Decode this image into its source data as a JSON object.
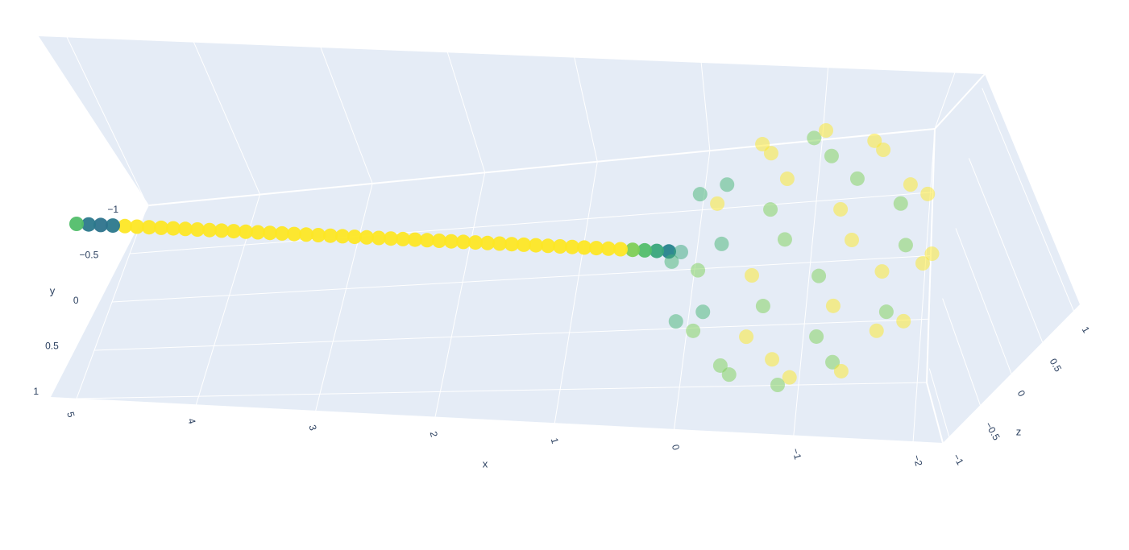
{
  "chart_data": {
    "type": "scatter3d",
    "x_title": "x",
    "y_title": "y",
    "z_title": "z",
    "xlim": [
      -2.2,
      5.3
    ],
    "ylim": [
      -1.1,
      1.1
    ],
    "zlim": [
      -1.1,
      1.1
    ],
    "xticks": [
      5,
      4,
      3,
      2,
      1,
      0,
      {
        "value": -1,
        "label": "−1"
      },
      {
        "value": -2,
        "label": "−2"
      }
    ],
    "yticks": [
      {
        "value": -1,
        "label": "−1"
      },
      {
        "value": -0.5,
        "label": "−0.5"
      },
      0,
      0.5,
      1
    ],
    "zticks": [
      {
        "value": -1,
        "label": "−1"
      },
      {
        "value": -0.5,
        "label": "−0.5"
      },
      0,
      0.5,
      1
    ],
    "grid": true,
    "colorscale": [
      "#440154",
      "#3b528b",
      "#21918c",
      "#5ec962",
      "#fde725"
    ],
    "series": [
      {
        "opacity": 0.95,
        "x": [
          0.1,
          0.2,
          0.3,
          0.4,
          0.5,
          0.6,
          0.7,
          0.8,
          0.9,
          1.0,
          1.1,
          1.2,
          1.3,
          1.4,
          1.5,
          1.6,
          1.7,
          1.8,
          1.9,
          2.0,
          2.1,
          2.2,
          2.3,
          2.4,
          2.5,
          2.6,
          2.7,
          2.8,
          2.9,
          3.0,
          3.1,
          3.2,
          3.3,
          3.4,
          3.5,
          3.6,
          3.7,
          3.8,
          3.9,
          4.0,
          4.1,
          4.2,
          4.3,
          4.4,
          4.5,
          4.6,
          4.7,
          4.8,
          4.9,
          5.0
        ],
        "y": [
          0,
          0,
          0,
          0,
          0,
          0,
          0,
          0,
          0,
          0,
          0,
          0,
          0,
          0,
          0,
          0,
          0,
          0,
          0,
          0,
          0,
          0,
          0,
          0,
          0,
          0,
          0,
          0,
          0,
          0,
          0,
          0,
          0,
          0,
          0,
          0,
          0,
          0,
          0,
          0,
          0,
          0,
          0,
          0,
          0,
          0,
          0,
          0,
          0,
          0
        ],
        "z": [
          0,
          0,
          0,
          0,
          0,
          0,
          0,
          0,
          0,
          0,
          0,
          0,
          0,
          0,
          0,
          0,
          0,
          0,
          0,
          0,
          0,
          0,
          0,
          0,
          0,
          0,
          0,
          0,
          0,
          0,
          0,
          0,
          0,
          0,
          0,
          0,
          0,
          0,
          0,
          0,
          0,
          0,
          0,
          0,
          0,
          0,
          0,
          0,
          0,
          0
        ],
        "color_values": [
          0.45,
          0.6,
          0.7,
          0.8,
          1,
          1,
          1,
          1,
          1,
          1,
          1,
          1,
          1,
          1,
          1,
          1,
          1,
          1,
          1,
          1,
          1,
          1,
          1,
          1,
          1,
          1,
          1,
          1,
          1,
          1,
          1,
          1,
          1,
          1,
          1,
          1,
          1,
          1,
          1,
          1,
          1,
          1,
          1,
          1,
          1,
          1,
          0.4,
          0.38,
          0.4,
          0.7
        ]
      },
      {
        "opacity": 0.5,
        "x": [
          0,
          -0.13,
          -0.5,
          -1,
          -1.5,
          -1.87,
          -2,
          -1.87,
          -1.5,
          -1,
          -0.5,
          -0.13,
          -0.17,
          -0.49,
          -1,
          -1.51,
          -1.83,
          -1.83,
          -1.51,
          -1,
          -0.49,
          -0.17,
          -0.17,
          -0.49,
          -1,
          -1.51,
          -1.83,
          -1.83,
          -1.51,
          -1,
          -0.49,
          -0.17,
          -0.5,
          -0.75,
          -1.25,
          -1.5,
          -1.25,
          -0.75,
          -0.5,
          -0.75,
          -1.25,
          -1.5,
          -1.25,
          -0.75,
          -1,
          -1
        ],
        "y": [
          0,
          0,
          0,
          0,
          0,
          0,
          0,
          0,
          0,
          0,
          0,
          0,
          0.5,
          0.5,
          0.5,
          0.5,
          0.5,
          0.5,
          0.5,
          0.5,
          0.5,
          0.5,
          -0.5,
          -0.5,
          -0.5,
          -0.5,
          -0.5,
          -0.5,
          -0.5,
          -0.5,
          -0.5,
          -0.5,
          0.87,
          0.87,
          0.87,
          0.87,
          0.87,
          0.87,
          -0.87,
          -0.87,
          -0.87,
          -0.87,
          -0.87,
          -0.87,
          1,
          -1
        ],
        "z": [
          0,
          0.5,
          0.87,
          1,
          0.87,
          0.5,
          0,
          -0.5,
          -0.87,
          -1,
          -0.87,
          -0.5,
          0.27,
          0.7,
          0.87,
          0.7,
          0.27,
          -0.27,
          -0.7,
          -0.87,
          -0.7,
          -0.27,
          0.27,
          0.7,
          0.87,
          0.7,
          0.27,
          -0.27,
          -0.7,
          -0.87,
          -0.7,
          -0.27,
          0,
          0.43,
          0.43,
          0,
          -0.43,
          -0.43,
          0,
          0.43,
          0.43,
          0,
          -0.43,
          -0.43,
          0,
          0
        ],
        "color_values": [
          0.6,
          0.65,
          0.8,
          1,
          0.8,
          1,
          1,
          1,
          0.8,
          1,
          0.8,
          0.65,
          0.65,
          0.8,
          1,
          0.8,
          1,
          1,
          0.8,
          1,
          0.8,
          0.65,
          0.65,
          1,
          0.8,
          1,
          1,
          0.8,
          1,
          0.8,
          1,
          0.65,
          0.8,
          1,
          0.8,
          1,
          1,
          0.8,
          1,
          0.8,
          1,
          1,
          0.8,
          1,
          0.8,
          1
        ]
      }
    ]
  }
}
